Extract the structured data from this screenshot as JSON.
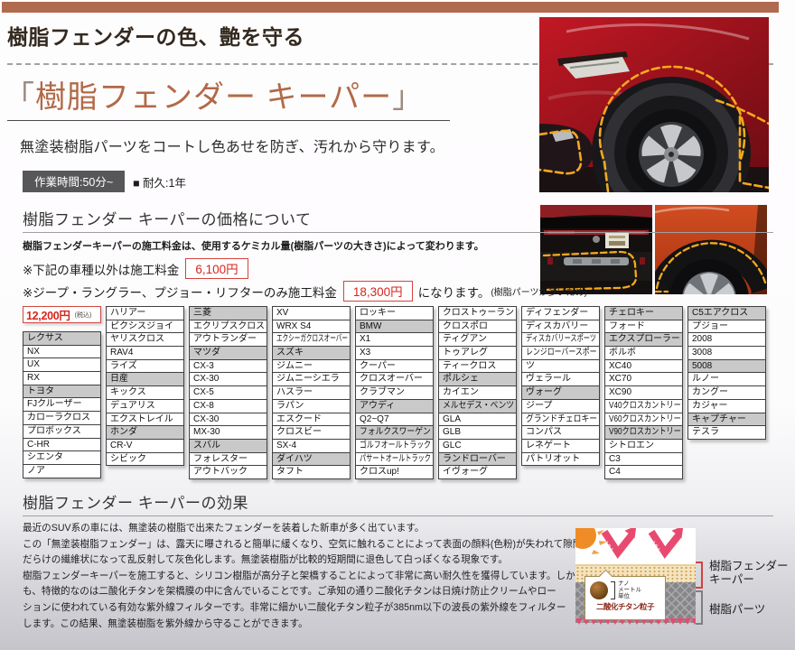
{
  "header": {
    "top_title": "樹脂フェンダーの色、艶を守る",
    "bracket_open": "「",
    "keeper_title": "樹脂フェンダー キーパー",
    "bracket_close": "」",
    "lead": "無塗装樹脂パーツをコートし色あせを防ぎ、汚れから守ります。",
    "time_badge": "作業時間:50分~",
    "durability": "■ 耐久:1年"
  },
  "pricing": {
    "heading": "樹脂フェンダー キーパーの価格について",
    "desc": "樹脂フェンダーキーパーの施工料金は、使用するケミカル量(樹脂パーツの大きさ)によって変わります。",
    "note1_text": "※下記の車種以外は施工料金",
    "note1_price": "6,100円",
    "note2_text": "※ジープ・ラングラー、プジョー・リフターのみ施工料金",
    "note2_price": "18,300円",
    "note2_suffix": "になります。",
    "note2_small": "(樹脂パーツが多いため)"
  },
  "price_table": {
    "price": "12,200円",
    "tax_note": "(税込)",
    "columns": [
      [
        {
          "t": "レクサス",
          "h": true
        },
        {
          "t": "NX"
        },
        {
          "t": "UX"
        },
        {
          "t": "RX"
        },
        {
          "t": "トヨタ",
          "h": true
        },
        {
          "t": "FJクルーザー"
        },
        {
          "t": "カローラクロス"
        },
        {
          "t": "プロボックス"
        },
        {
          "t": "C-HR"
        },
        {
          "t": "シエンタ"
        },
        {
          "t": "ノア"
        }
      ],
      [
        {
          "t": "ハリアー"
        },
        {
          "t": "ピクシスジョイ"
        },
        {
          "t": "ヤリスクロス"
        },
        {
          "t": "RAV4"
        },
        {
          "t": "ライズ"
        },
        {
          "t": "日産",
          "h": true
        },
        {
          "t": "キックス"
        },
        {
          "t": "デュアリス"
        },
        {
          "t": "エクストレイル"
        },
        {
          "t": "ホンダ",
          "h": true
        },
        {
          "t": "CR-V"
        },
        {
          "t": "シビック"
        }
      ],
      [
        {
          "t": "三菱",
          "h": true
        },
        {
          "t": "エクリプスクロス"
        },
        {
          "t": "アウトランダー"
        },
        {
          "t": "マツダ",
          "h": true
        },
        {
          "t": "CX-3"
        },
        {
          "t": "CX-30"
        },
        {
          "t": "CX-5"
        },
        {
          "t": "CX-8"
        },
        {
          "t": "CX-30"
        },
        {
          "t": "MX-30"
        },
        {
          "t": "スバル",
          "h": true
        },
        {
          "t": "フォレスター"
        },
        {
          "t": "アウトバック"
        }
      ],
      [
        {
          "t": "XV"
        },
        {
          "t": "WRX S4"
        },
        {
          "t": "エクシーガクロスオーバー"
        },
        {
          "t": "スズキ",
          "h": true
        },
        {
          "t": "ジムニー"
        },
        {
          "t": "ジムニーシエラ"
        },
        {
          "t": "ハスラー"
        },
        {
          "t": "ラパン"
        },
        {
          "t": "エスクード"
        },
        {
          "t": "クロスビー"
        },
        {
          "t": "SX-4"
        },
        {
          "t": "ダイハツ",
          "h": true
        },
        {
          "t": "タフト"
        }
      ],
      [
        {
          "t": "ロッキー"
        },
        {
          "t": "BMW",
          "h": true
        },
        {
          "t": "X1"
        },
        {
          "t": "X3"
        },
        {
          "t": "クーパー"
        },
        {
          "t": "クロスオーバー"
        },
        {
          "t": "クラブマン"
        },
        {
          "t": "アウディ",
          "h": true
        },
        {
          "t": "Q2~Q7"
        },
        {
          "t": "フォルクスワーゲン",
          "h": true
        },
        {
          "t": "ゴルフオールトラック"
        },
        {
          "t": "パサートオールトラック"
        },
        {
          "t": "クロスup!"
        }
      ],
      [
        {
          "t": "クロストゥーラン"
        },
        {
          "t": "クロスポロ"
        },
        {
          "t": "ティグアン"
        },
        {
          "t": "トゥアレグ"
        },
        {
          "t": "ティークロス"
        },
        {
          "t": "ポルシェ",
          "h": true
        },
        {
          "t": "カイエン"
        },
        {
          "t": "メルセデス・ベンツ",
          "h": true
        },
        {
          "t": "GLA"
        },
        {
          "t": "GLB"
        },
        {
          "t": "GLC"
        },
        {
          "t": "ランドローバー",
          "h": true
        },
        {
          "t": "イヴォーグ"
        }
      ],
      [
        {
          "t": "ディフェンダー"
        },
        {
          "t": "ディスカバリー"
        },
        {
          "t": "ディスカバリースポーツ"
        },
        {
          "t": "レンジローバースポー"
        },
        {
          "t": "ツ"
        },
        {
          "t": "ヴェラール"
        },
        {
          "t": "ヴォーグ",
          "h": true
        },
        {
          "t": "ジープ"
        },
        {
          "t": "グランドチェロキー"
        },
        {
          "t": "コンパス"
        },
        {
          "t": "レネゲート"
        },
        {
          "t": "パトリオット"
        }
      ],
      [
        {
          "t": "チェロキー",
          "h": true
        },
        {
          "t": "フォード"
        },
        {
          "t": "エクスプローラー",
          "h": true
        },
        {
          "t": "ボルボ"
        },
        {
          "t": "XC40"
        },
        {
          "t": "XC70"
        },
        {
          "t": "XC90"
        },
        {
          "t": "V40クロスカントリー"
        },
        {
          "t": "V60クロスカントリー"
        },
        {
          "t": "V90クロスカントリー",
          "h": true
        },
        {
          "t": "シトロエン"
        },
        {
          "t": "C3"
        },
        {
          "t": "C4"
        }
      ],
      [
        {
          "t": "C5エアクロス",
          "h": true
        },
        {
          "t": "プジョー"
        },
        {
          "t": "2008"
        },
        {
          "t": "3008"
        },
        {
          "t": "5008",
          "h": true
        },
        {
          "t": "ルノー"
        },
        {
          "t": "カングー"
        },
        {
          "t": "カジャー"
        },
        {
          "t": "キャプチャー",
          "h": true
        },
        {
          "t": "テスラ"
        }
      ]
    ]
  },
  "effect": {
    "heading": "樹脂フェンダー キーパーの効果",
    "lines": [
      "最近のSUV系の車には、無塗装の樹脂で出来たフェンダーを装着した新車が多く出ています。",
      "この「無塗装樹脂フェンダー」は、露天に曝されると簡単に緩くなり、空気に触れることによって表面の顔料(色粉)が失われて隙間",
      "だらけの繊維状になって乱反射して灰色化します。無塗装樹脂が比較的短期間に退色して白っぽくなる現象です。",
      "樹脂フェンダーキーパーを施工すると、シリコン樹脂が高分子と架橋することによって非常に高い耐久性を獲得しています。しか",
      "も、特徴的なのは二酸化チタンを架橋膜の中に含んでいることです。ご承知の通り二酸化チタンは日焼け防止クリームやロー",
      "ションに使われている有効な紫外線フィルターです。非常に細かい二酸化チタン粒子が385nm以下の波長の紫外線をフィルター",
      "します。この結果、無塗装樹脂を紫外線から守ることができます。"
    ]
  },
  "diagram": {
    "uv_label": "UV",
    "nano_lines": [
      "ナノ",
      "メートル",
      "単位"
    ],
    "particle_label": "二酸化チタン粒子",
    "keeper_label_1": "樹脂フェンダー",
    "keeper_label_2": "キーパー",
    "parts_label": "樹脂パーツ"
  },
  "colors": {
    "brand_brown": "#b06a4e",
    "keeper_text": "#b26947",
    "accent_red": "#d6251d",
    "badge_gray": "#57575a",
    "brand_cell_gray": "#c9c9ca",
    "dash_yellow": "#f6a81c",
    "uv_pink": "#e84a6f"
  }
}
